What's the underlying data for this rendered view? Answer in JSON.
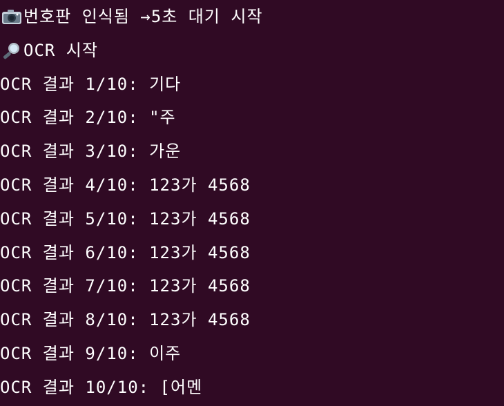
{
  "terminal": {
    "lines": [
      {
        "icon": "camera-icon",
        "text": "번호판 인식됨 →5초 대기 시작"
      },
      {
        "icon": "magnifier-icon",
        "text": "OCR 시작"
      },
      {
        "text": "OCR 결과 1/10: 기다"
      },
      {
        "text": "OCR 결과 2/10: \"주"
      },
      {
        "text": "OCR 결과 3/10: 가운"
      },
      {
        "text": "OCR 결과 4/10: 123가 4568"
      },
      {
        "text": "OCR 결과 5/10: 123가 4568"
      },
      {
        "text": "OCR 결과 6/10: 123가 4568"
      },
      {
        "text": "OCR 결과 7/10: 123가 4568"
      },
      {
        "text": "OCR 결과 8/10: 123가 4568"
      },
      {
        "text": "OCR 결과 9/10: 이주"
      },
      {
        "text": "OCR 결과 10/10: [어멘"
      }
    ]
  },
  "colors": {
    "background": "#300a24",
    "foreground": "#ffffff"
  }
}
